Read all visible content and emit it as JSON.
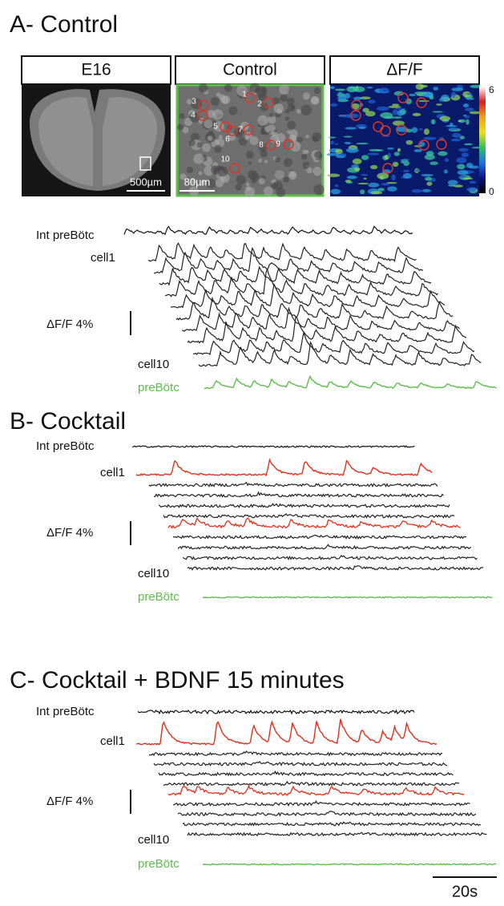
{
  "panels": [
    {
      "title": "A- Control",
      "images": [
        {
          "label": "E16",
          "scale_bar": "500µm"
        },
        {
          "label": "Control",
          "scale_bar": "80µm",
          "cells": [
            "1",
            "2",
            "3",
            "4",
            "5",
            "6",
            "7",
            "8",
            "9",
            "10"
          ]
        },
        {
          "label": "ΔF/F",
          "colorbar": [
            "6",
            "0"
          ]
        }
      ],
      "traces": {
        "int": "Int preBötc",
        "first": "cell1",
        "last": "cell10",
        "pop": "preBötc",
        "scale": "ΔF/F  4%"
      }
    },
    {
      "title": "B- Cocktail",
      "traces": {
        "int": "Int preBötc",
        "first": "cell1",
        "last": "cell10",
        "pop": "preBötc",
        "scale": "ΔF/F  4%"
      }
    },
    {
      "title": "C- Cocktail + BDNF 15 minutes",
      "traces": {
        "int": "Int preBötc",
        "first": "cell1",
        "last": "cell10",
        "pop": "preBötc",
        "scale": "ΔF/F  4%"
      }
    }
  ],
  "time_scale": "20s"
}
